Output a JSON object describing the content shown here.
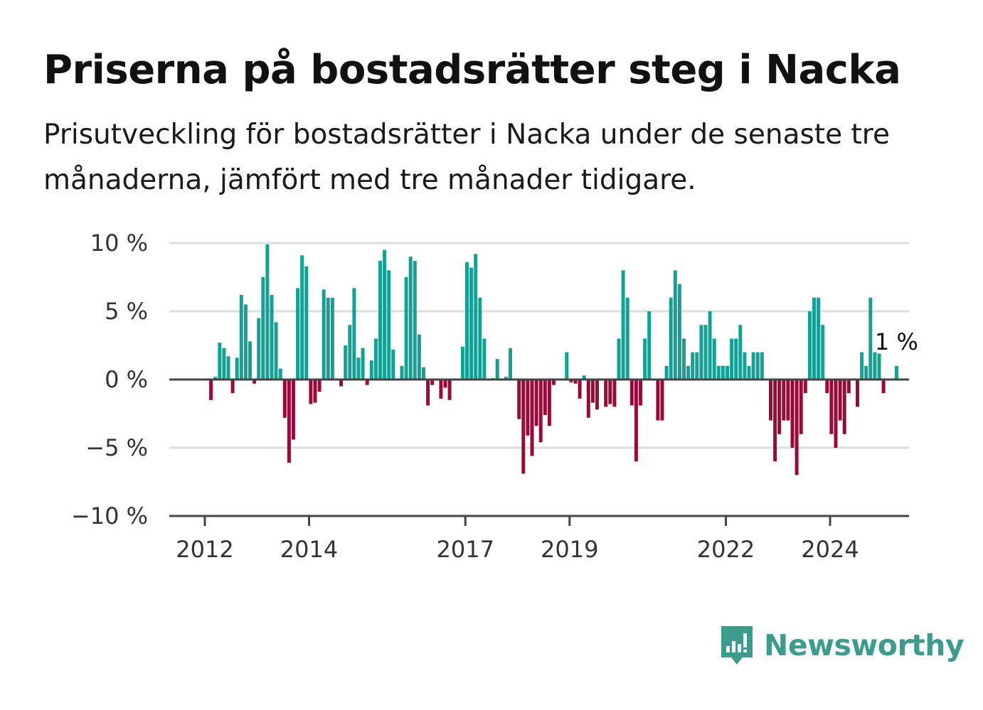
{
  "title": "Priserna på bostadsrätter steg i Nacka",
  "subtitle": "Prisutveckling för bostadsrätter i Nacka under de senaste tre månaderna, jämfört med tre månader tidigare.",
  "brand": {
    "name": "Newsworthy",
    "icon": "newsworthy-logo-icon",
    "color": "#3c9b8d"
  },
  "colors": {
    "positive": "#14a094",
    "negative": "#960a3c",
    "grid": "#dddddd",
    "axis": "#444444"
  },
  "chart_data": {
    "type": "bar",
    "title": "Priserna på bostadsrätter steg i Nacka",
    "xlabel": "",
    "ylabel": "",
    "ylim": [
      -10,
      10
    ],
    "y_ticks": [
      10,
      5,
      0,
      -5,
      -10
    ],
    "y_tick_labels": [
      "10 %",
      "5 %",
      "0 %",
      "−5 %",
      "−10 %"
    ],
    "x_ticks": [
      2012,
      2014,
      2017,
      2019,
      2022,
      2024
    ],
    "x_tick_labels": [
      "2012",
      "2014",
      "2017",
      "2019",
      "2022",
      "2024"
    ],
    "x_start": 2012,
    "bars_per_year": 12,
    "grid": true,
    "legend": "none",
    "annotation": {
      "text": "1 %",
      "target": "last"
    },
    "values": [
      0,
      -1.5,
      0.2,
      2.7,
      2.3,
      1.7,
      -1,
      1.6,
      6.2,
      5.5,
      2.8,
      -0.3,
      4.5,
      7.5,
      9.9,
      6.2,
      4.2,
      0.8,
      -2.8,
      -6.1,
      -4.4,
      6.7,
      9.1,
      8.3,
      -1.8,
      -1.7,
      -0.9,
      6.6,
      6,
      6,
      0,
      -0.5,
      2.5,
      4,
      6.7,
      1.6,
      2.3,
      -0.4,
      1.4,
      3,
      8.7,
      9.5,
      8,
      2.2,
      0,
      1,
      7.5,
      9,
      8.7,
      3.3,
      0.9,
      -1.9,
      -0.4,
      0,
      -1.4,
      -0.6,
      -1.5,
      0,
      0,
      2.4,
      8.6,
      8.2,
      9.2,
      6,
      3,
      0,
      0.1,
      1.5,
      0,
      0.2,
      2.3,
      0,
      -2.9,
      -6.9,
      -4.1,
      -5.6,
      -3.4,
      -4.6,
      -2.6,
      -3.4,
      -0.4,
      0,
      0,
      2,
      -0.2,
      -0.3,
      -1.4,
      0.3,
      -2.8,
      -1.7,
      -2.2,
      0,
      -2,
      -1.8,
      -2,
      3,
      8,
      6,
      -1.9,
      -6,
      -1.9,
      3,
      5,
      0,
      -3,
      -3,
      1,
      6,
      8,
      7,
      3,
      1,
      2,
      2,
      4,
      4,
      5,
      3,
      1,
      1,
      1,
      3,
      3,
      4,
      2,
      1,
      2,
      2,
      2,
      0,
      -3,
      -6,
      -4,
      -3,
      -3,
      -5,
      -7,
      -4,
      -1,
      5,
      6,
      6,
      4,
      -1,
      -4,
      -5,
      -3,
      -4,
      -1,
      0,
      -2,
      2,
      1,
      6,
      2,
      1.9,
      -1,
      0,
      0,
      1
    ]
  }
}
